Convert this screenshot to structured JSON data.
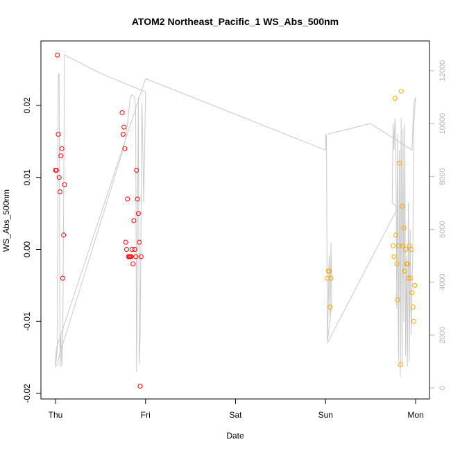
{
  "chart_data": {
    "type": "scatter",
    "title": "ATOM2 Northeast_Pacific_1 WS_Abs_500nm",
    "xlabel": "Date",
    "ylabel": "WS_Abs_500nm",
    "x_unit": "days since Thu 00:00",
    "xlim": [
      0,
      4
    ],
    "ylim": [
      -0.02,
      0.027
    ],
    "x_ticks": [
      {
        "label": "Thu",
        "value": 0
      },
      {
        "label": "Fri",
        "value": 1
      },
      {
        "label": "Sat",
        "value": 2
      },
      {
        "label": "Sun",
        "value": 3
      },
      {
        "label": "Mon",
        "value": 4
      }
    ],
    "y_ticks": [
      {
        "label": "-0.02",
        "value": -0.02
      },
      {
        "label": "-0.01",
        "value": -0.01
      },
      {
        "label": "0.00",
        "value": 0.0
      },
      {
        "label": "0.01",
        "value": 0.01
      },
      {
        "label": "0.02",
        "value": 0.02
      }
    ],
    "y2_ticks": [
      {
        "label": "0",
        "value": 0
      },
      {
        "label": "2000",
        "value": 2000
      },
      {
        "label": "4000",
        "value": 4000
      },
      {
        "label": "6000",
        "value": 6000
      },
      {
        "label": "8000",
        "value": 8000
      },
      {
        "label": "10000",
        "value": 10000
      },
      {
        "label": "12000",
        "value": 12000
      }
    ],
    "y2lim": [
      -300,
      13000
    ],
    "series": [
      {
        "color": "#ff0000",
        "marker": "open-circle",
        "points": [
          {
            "x": 0.0,
            "y": 0.011
          },
          {
            "x": 0.01,
            "y": 0.011
          },
          {
            "x": 0.02,
            "y": 0.027
          },
          {
            "x": 0.03,
            "y": 0.016
          },
          {
            "x": 0.04,
            "y": 0.01
          },
          {
            "x": 0.05,
            "y": 0.008
          },
          {
            "x": 0.06,
            "y": 0.013
          },
          {
            "x": 0.07,
            "y": 0.014
          },
          {
            "x": 0.08,
            "y": -0.004
          },
          {
            "x": 0.09,
            "y": 0.002
          },
          {
            "x": 0.1,
            "y": 0.009
          },
          {
            "x": 0.74,
            "y": 0.019
          },
          {
            "x": 0.75,
            "y": 0.016
          },
          {
            "x": 0.76,
            "y": 0.017
          },
          {
            "x": 0.77,
            "y": 0.014
          },
          {
            "x": 0.78,
            "y": 0.001
          },
          {
            "x": 0.79,
            "y": 0.0
          },
          {
            "x": 0.8,
            "y": 0.007
          },
          {
            "x": 0.81,
            "y": -0.001
          },
          {
            "x": 0.82,
            "y": -0.001
          },
          {
            "x": 0.83,
            "y": -0.001
          },
          {
            "x": 0.84,
            "y": -0.001
          },
          {
            "x": 0.85,
            "y": 0.0
          },
          {
            "x": 0.86,
            "y": -0.002
          },
          {
            "x": 0.87,
            "y": 0.004
          },
          {
            "x": 0.88,
            "y": 0.0
          },
          {
            "x": 0.89,
            "y": -0.001
          },
          {
            "x": 0.9,
            "y": 0.011
          },
          {
            "x": 0.91,
            "y": 0.007
          },
          {
            "x": 0.92,
            "y": 0.005
          },
          {
            "x": 0.93,
            "y": 0.001
          },
          {
            "x": 0.94,
            "y": -0.019
          },
          {
            "x": 0.95,
            "y": -0.001
          }
        ]
      },
      {
        "color": "#ffa500",
        "marker": "open-circle",
        "points": [
          {
            "x": 3.02,
            "y": -0.004
          },
          {
            "x": 3.03,
            "y": -0.003
          },
          {
            "x": 3.04,
            "y": -0.003
          },
          {
            "x": 3.05,
            "y": -0.008
          },
          {
            "x": 3.06,
            "y": -0.004
          },
          {
            "x": 3.75,
            "y": 0.0005
          },
          {
            "x": 3.76,
            "y": -0.001
          },
          {
            "x": 3.77,
            "y": 0.021
          },
          {
            "x": 3.78,
            "y": 0.002
          },
          {
            "x": 3.79,
            "y": -0.002
          },
          {
            "x": 3.8,
            "y": -0.007
          },
          {
            "x": 3.81,
            "y": 0.0005
          },
          {
            "x": 3.82,
            "y": 0.012
          },
          {
            "x": 3.83,
            "y": -0.016
          },
          {
            "x": 3.84,
            "y": 0.022
          },
          {
            "x": 3.85,
            "y": 0.006
          },
          {
            "x": 3.86,
            "y": 0.0005
          },
          {
            "x": 3.87,
            "y": 0.003
          },
          {
            "x": 3.88,
            "y": -0.003
          },
          {
            "x": 3.89,
            "y": 0.0
          },
          {
            "x": 3.9,
            "y": -0.002
          },
          {
            "x": 3.91,
            "y": -0.002
          },
          {
            "x": 3.92,
            "y": -0.004
          },
          {
            "x": 3.93,
            "y": 0.0005
          },
          {
            "x": 3.94,
            "y": -0.004
          },
          {
            "x": 3.95,
            "y": 0.0
          },
          {
            "x": 3.96,
            "y": -0.006
          },
          {
            "x": 3.97,
            "y": -0.008
          },
          {
            "x": 3.98,
            "y": -0.01
          },
          {
            "x": 3.99,
            "y": -0.005
          }
        ]
      }
    ],
    "background_line": {
      "color": "#c8c8c8",
      "axis": "right",
      "points": [
        [
          0.0,
          800
        ],
        [
          0.02,
          1500
        ],
        [
          0.03,
          11800
        ],
        [
          0.04,
          11900
        ],
        [
          0.05,
          800
        ],
        [
          0.06,
          2000
        ],
        [
          0.07,
          800
        ],
        [
          0.08,
          1500
        ],
        [
          0.1,
          12600
        ],
        [
          0.5,
          11900
        ],
        [
          1.0,
          11200
        ],
        [
          0.98,
          7000
        ],
        [
          0.96,
          10800
        ],
        [
          0.94,
          2000
        ],
        [
          0.93,
          900
        ],
        [
          0.92,
          11000
        ],
        [
          0.9,
          600
        ],
        [
          0.89,
          10500
        ],
        [
          0.88,
          11000
        ],
        [
          0.85,
          11100
        ],
        [
          0.83,
          11000
        ],
        [
          0.8,
          10000
        ],
        [
          0.78,
          9500
        ],
        [
          0.75,
          9000
        ],
        [
          0.04,
          1200
        ],
        [
          0.02,
          900
        ],
        [
          0.0,
          800
        ],
        [
          0.0,
          1000
        ],
        [
          0.01,
          1500
        ],
        [
          1.0,
          11700
        ],
        [
          3.0,
          9000
        ],
        [
          3.0,
          9600
        ],
        [
          3.01,
          9500
        ],
        [
          3.02,
          1800
        ],
        [
          3.03,
          3000
        ],
        [
          3.04,
          5000
        ],
        [
          3.05,
          2500
        ],
        [
          3.06,
          5500
        ],
        [
          3.07,
          3300
        ],
        [
          3.04,
          2300
        ],
        [
          3.02,
          1700
        ],
        [
          3.8,
          6800
        ],
        [
          3.74,
          7000
        ],
        [
          3.75,
          10000
        ],
        [
          3.76,
          9000
        ],
        [
          3.77,
          10200
        ],
        [
          3.78,
          9500
        ],
        [
          3.79,
          3000
        ],
        [
          3.8,
          9600
        ],
        [
          3.81,
          1000
        ],
        [
          3.82,
          9000
        ],
        [
          3.83,
          400
        ],
        [
          3.84,
          10200
        ],
        [
          3.85,
          800
        ],
        [
          3.86,
          9800
        ],
        [
          3.87,
          2500
        ],
        [
          3.88,
          10000
        ],
        [
          3.89,
          1200
        ],
        [
          3.9,
          5000
        ],
        [
          3.91,
          800
        ],
        [
          3.92,
          7000
        ],
        [
          3.93,
          1000
        ],
        [
          3.94,
          6000
        ],
        [
          3.95,
          2000
        ],
        [
          3.97,
          5400
        ],
        [
          3.98,
          10000
        ],
        [
          3.99,
          10500
        ],
        [
          4.0,
          11000
        ],
        [
          3.98,
          10800
        ],
        [
          3.96,
          9000
        ],
        [
          3.5,
          10000
        ],
        [
          3.02,
          9600
        ]
      ]
    }
  }
}
